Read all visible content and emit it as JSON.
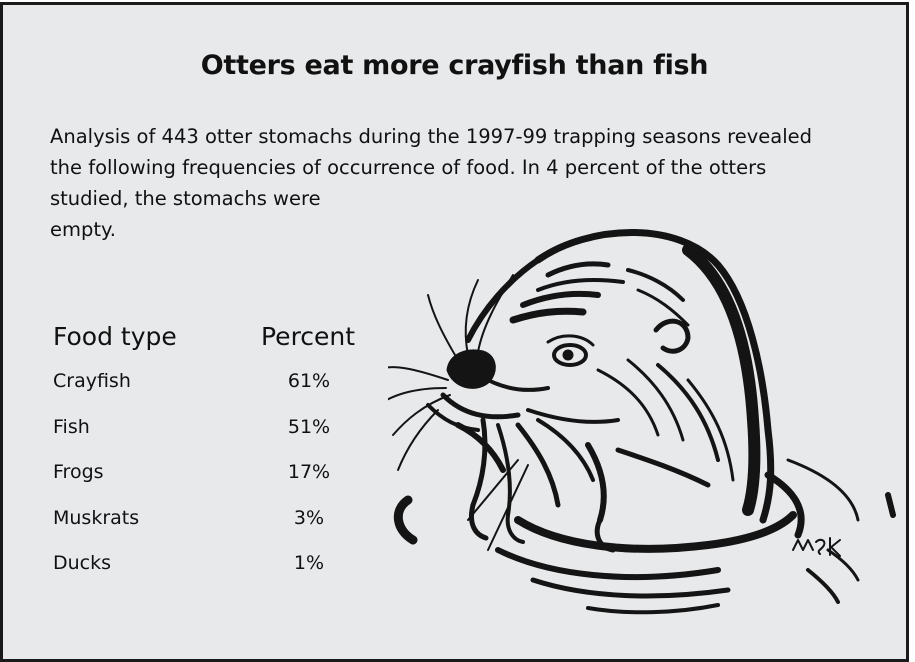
{
  "title": "Otters eat more crayfish than fish",
  "intro": {
    "line1": "Analysis of 443 otter stomachs during the 1997-99 trapping seasons revealed",
    "line2": "the following frequencies of occurrence of food. In 4 percent of the otters",
    "line3": "studied, the stomachs were",
    "line4": "empty."
  },
  "table": {
    "header_food": "Food type",
    "header_percent": "Percent",
    "rows": [
      {
        "food": "Crayfish",
        "percent": "61%"
      },
      {
        "food": "Fish",
        "percent": "51%"
      },
      {
        "food": "Frogs",
        "percent": "17%"
      },
      {
        "food": "Muskrats",
        "percent": "3%"
      },
      {
        "food": "Ducks",
        "percent": "1%"
      }
    ]
  },
  "illustration": {
    "icon": "otter-illustration-icon",
    "signature": "msk",
    "ink_color": "#141414"
  }
}
